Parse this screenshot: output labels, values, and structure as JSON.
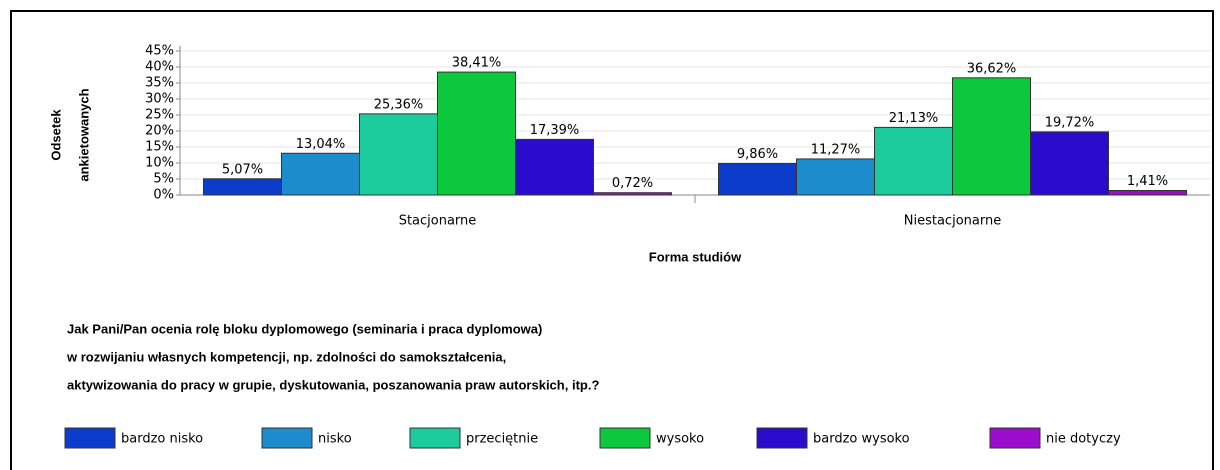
{
  "chart_data": {
    "type": "bar",
    "title": [
      "Jak Pani/Pan ocenia rolę bloku dyplomowego (seminaria i praca dyplomowa)",
      "w rozwijaniu własnych kompetencji, np. zdolności do samokształcenia,",
      "aktywizowania do pracy w grupie, dyskutowania, poszanowania praw autorskich, itp.?"
    ],
    "x_label": "Forma studiów",
    "y_label": [
      "Odsetek",
      "ankietowanych"
    ],
    "categories": [
      "Stacjonarne",
      "Niestacjonarne"
    ],
    "series": [
      {
        "name": "bardzo nisko",
        "color": "#0c3ccc",
        "values": [
          5.07,
          9.86
        ],
        "value_labels": [
          "5,07%",
          "9,86%"
        ]
      },
      {
        "name": "nisko",
        "color": "#1c8ccc",
        "values": [
          13.04,
          11.27
        ],
        "value_labels": [
          "13,04%",
          "11,27%"
        ]
      },
      {
        "name": "przeciętnie",
        "color": "#1ccc9c",
        "values": [
          25.36,
          21.13
        ],
        "value_labels": [
          "25,36%",
          "21,13%"
        ]
      },
      {
        "name": "wysoko",
        "color": "#0cc83c",
        "values": [
          38.41,
          36.62
        ],
        "value_labels": [
          "38,41%",
          "36,62%"
        ]
      },
      {
        "name": "bardzo wysoko",
        "color": "#2c0ccc",
        "values": [
          17.39,
          19.72
        ],
        "value_labels": [
          "17,39%",
          "19,72%"
        ]
      },
      {
        "name": "nie dotyczy",
        "color": "#9c0ccc",
        "values": [
          0.72,
          1.41
        ],
        "value_labels": [
          "0,72%",
          "1,41%"
        ]
      }
    ],
    "ylim": [
      0,
      45
    ],
    "yticks": [
      {
        "value": 0,
        "label": "0%"
      },
      {
        "value": 5,
        "label": "5%"
      },
      {
        "value": 10,
        "label": "10%"
      },
      {
        "value": 15,
        "label": "15%"
      },
      {
        "value": 20,
        "label": "20%"
      },
      {
        "value": 25,
        "label": "25%"
      },
      {
        "value": 30,
        "label": "30%"
      },
      {
        "value": 35,
        "label": "35%"
      },
      {
        "value": 40,
        "label": "40%"
      },
      {
        "value": 45,
        "label": "45%"
      }
    ],
    "grid": true,
    "legend": "bottom"
  }
}
